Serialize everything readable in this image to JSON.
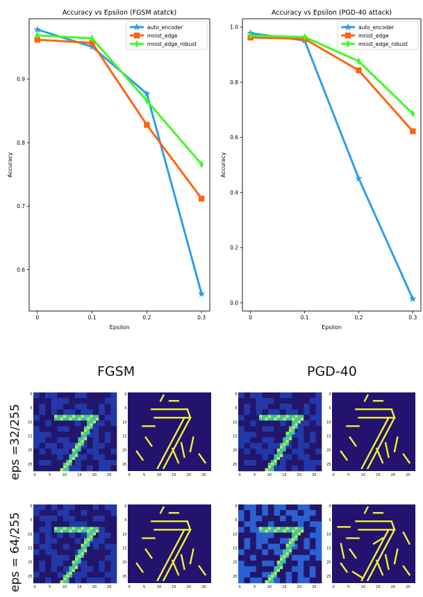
{
  "chart_data": [
    {
      "type": "line",
      "title": "Accuracy vs Epsilon (FGSM atatck)",
      "xlabel": "Epsilon",
      "ylabel": "Accuracy",
      "x": [
        0,
        0.1,
        0.2,
        0.3
      ],
      "xticks": [
        "0",
        "0.1",
        "0.2",
        "0.3"
      ],
      "yticks": [
        "0.6",
        "0.7",
        "0.8",
        "0.9"
      ],
      "xlim": [
        -0.015,
        0.315
      ],
      "ylim": [
        0.535,
        0.995
      ],
      "legend": "top-right",
      "series": [
        {
          "name": "auto_encoder",
          "values": [
            0.978,
            0.951,
            0.877,
            0.562
          ],
          "color": "#2b9fe8",
          "marker": "star"
        },
        {
          "name": "mnist_edge",
          "values": [
            0.962,
            0.957,
            0.828,
            0.712
          ],
          "color": "#ff6412",
          "marker": "square"
        },
        {
          "name": "mnist_edge_robust",
          "values": [
            0.969,
            0.964,
            0.866,
            0.766
          ],
          "color": "#3dfb23",
          "marker": "thin_diamond"
        }
      ]
    },
    {
      "type": "line",
      "title": "Accuracy vs Epsilon (PGD-40 attack)",
      "xlabel": "Epsilon",
      "ylabel": "Accuracy",
      "x": [
        0,
        0.1,
        0.2,
        0.3
      ],
      "xticks": [
        "0",
        "0.1",
        "0.2",
        "0.3"
      ],
      "yticks": [
        "0.0",
        "0.2",
        "0.4",
        "0.6",
        "0.8",
        "1.0"
      ],
      "xlim": [
        -0.015,
        0.315
      ],
      "ylim": [
        -0.03,
        1.03
      ],
      "legend": "top-right",
      "series": [
        {
          "name": "auto_encoder",
          "values": [
            0.978,
            0.951,
            0.451,
            0.014
          ],
          "color": "#2b9fe8",
          "marker": "star"
        },
        {
          "name": "mnist_edge",
          "values": [
            0.962,
            0.957,
            0.843,
            0.622
          ],
          "color": "#ff6412",
          "marker": "square"
        },
        {
          "name": "mnist_edge_robust",
          "values": [
            0.969,
            0.964,
            0.876,
            0.686
          ],
          "color": "#3dfb23",
          "marker": "thin_diamond"
        }
      ]
    }
  ],
  "figure": {
    "columns": [
      "FGSM",
      "PGD-40"
    ],
    "rows": [
      "eps =32/255",
      "eps = 64/255"
    ],
    "panel_ticks": [
      "0",
      "5",
      "10",
      "15",
      "20",
      "25"
    ]
  }
}
